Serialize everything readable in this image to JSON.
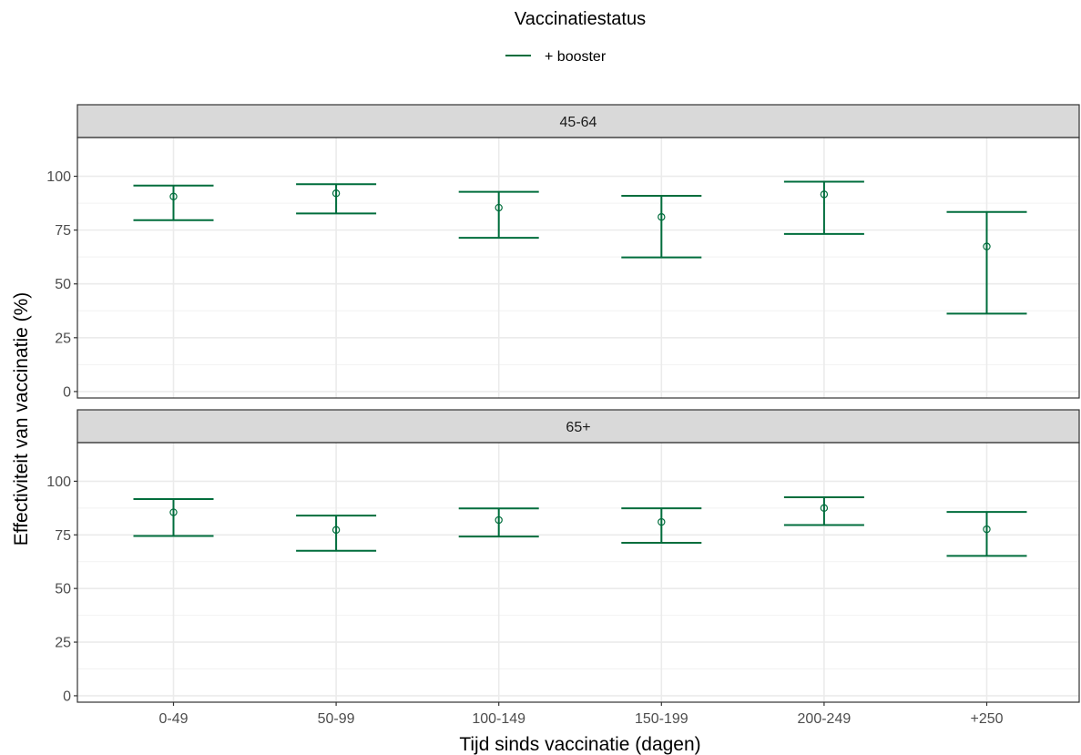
{
  "chart_data": {
    "type": "errorbar",
    "legend": {
      "title": "Vaccinatiestatus",
      "entries": [
        {
          "label": "+ booster",
          "color": "#006d3c"
        }
      ],
      "position": "top"
    },
    "xlabel": "Tijd sinds vaccinatie (dagen)",
    "ylabel": "Effectiviteit van vaccinatie (%)",
    "categories": [
      "0-49",
      "50-99",
      "100-149",
      "150-199",
      "200-249",
      "+250"
    ],
    "ylim": [
      -3,
      118
    ],
    "yticks": [
      0,
      25,
      50,
      75,
      100
    ],
    "grid": true,
    "series_color": "#006d3c",
    "panels": [
      {
        "label": "45-64",
        "series": [
          {
            "name": "+ booster",
            "estimate": [
              90.6,
              92.1,
              85.4,
              81.1,
              91.6,
              67.4
            ],
            "lower": [
              79.6,
              82.7,
              71.4,
              62.3,
              73.2,
              36.2
            ],
            "upper": [
              95.7,
              96.3,
              92.8,
              90.9,
              97.5,
              83.4
            ]
          }
        ]
      },
      {
        "label": "65+",
        "series": [
          {
            "name": "+ booster",
            "estimate": [
              85.5,
              77.3,
              81.9,
              81.0,
              87.5,
              77.6
            ],
            "lower": [
              74.5,
              67.6,
              74.2,
              71.3,
              79.6,
              65.2
            ],
            "upper": [
              91.7,
              84.0,
              87.3,
              87.4,
              92.5,
              85.7
            ]
          }
        ]
      }
    ]
  }
}
